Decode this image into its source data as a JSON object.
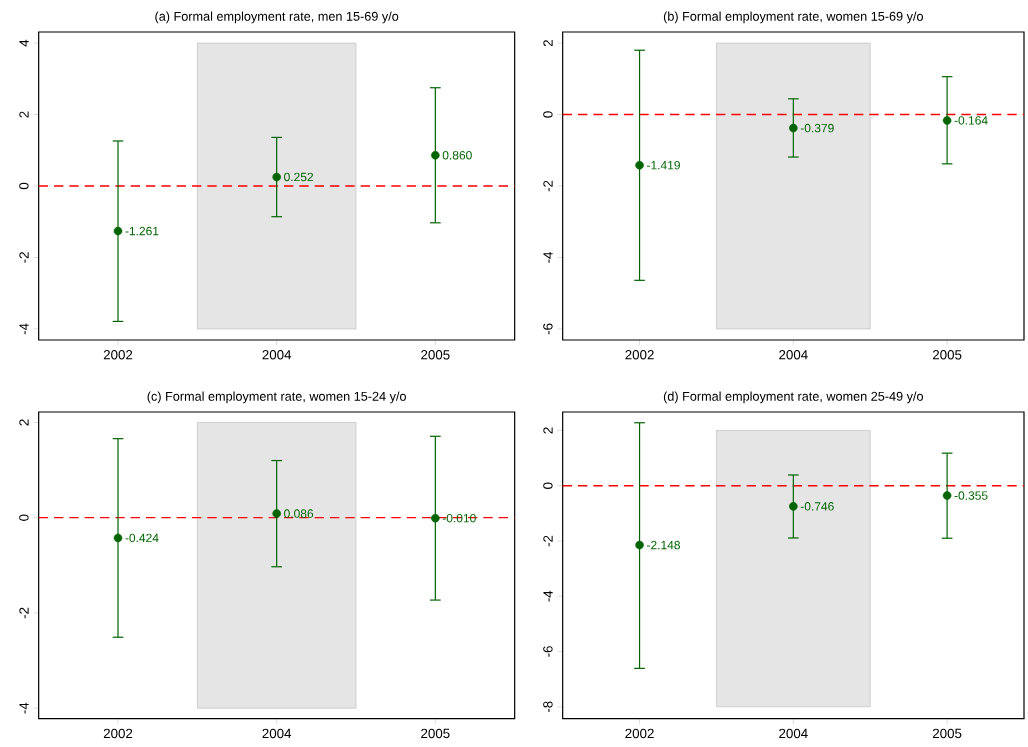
{
  "chart_data": [
    {
      "type": "scatter",
      "title": "(a) Formal employment rate, men 15-69 y/o",
      "categories": [
        "2002",
        "2004",
        "2005"
      ],
      "marker": "circle",
      "ylim": [
        -4.31,
        4.31
      ],
      "yticks": [
        -4,
        -2,
        0,
        2,
        4
      ],
      "series": [
        {
          "color": "#006400",
          "values": [
            -1.261,
            0.252,
            0.86
          ],
          "value_labels": [
            "-1.261",
            "0.252",
            "0.860"
          ],
          "errors": [
            [
              -3.79,
              1.26
            ],
            [
              -0.86,
              1.36
            ],
            [
              -1.03,
              2.75
            ]
          ]
        }
      ],
      "ref_lines": [
        {
          "axis": "y",
          "value": 0,
          "color": "#ff0000",
          "line_style": "dashed"
        }
      ],
      "bands": [
        {
          "axis": "x",
          "from": "2004",
          "to": "2004",
          "color": "#e5e5e5"
        }
      ]
    },
    {
      "type": "scatter",
      "title": "(b) Formal employment rate, women 15-69 y/o",
      "categories": [
        "2002",
        "2004",
        "2005"
      ],
      "marker": "circle",
      "ylim": [
        -6.31,
        2.31
      ],
      "yticks": [
        -6,
        -4,
        -2,
        0,
        2
      ],
      "series": [
        {
          "color": "#006400",
          "values": [
            -1.419,
            -0.379,
            -0.164
          ],
          "value_labels": [
            "-1.419",
            "-0.379",
            "-0.164"
          ],
          "errors": [
            [
              -4.64,
              1.8
            ],
            [
              -1.19,
              0.44
            ],
            [
              -1.38,
              1.06
            ]
          ]
        }
      ],
      "ref_lines": [
        {
          "axis": "y",
          "value": 0,
          "color": "#ff0000",
          "line_style": "dashed"
        }
      ],
      "bands": [
        {
          "axis": "x",
          "from": "2004",
          "to": "2004",
          "color": "#e5e5e5"
        }
      ]
    },
    {
      "type": "scatter",
      "title": "(c) Formal employment rate, women 15-24 y/o",
      "categories": [
        "2002",
        "2004",
        "2005"
      ],
      "marker": "circle",
      "ylim": [
        -4.22,
        2.22
      ],
      "yticks": [
        -4,
        -2,
        0,
        2
      ],
      "series": [
        {
          "color": "#006400",
          "values": [
            -0.424,
            0.086,
            -0.01
          ],
          "value_labels": [
            "-0.424",
            "0.086",
            "-0.010"
          ],
          "errors": [
            [
              -2.51,
              1.66
            ],
            [
              -1.03,
              1.2
            ],
            [
              -1.73,
              1.71
            ]
          ]
        }
      ],
      "ref_lines": [
        {
          "axis": "y",
          "value": 0,
          "color": "#ff0000",
          "line_style": "dashed"
        }
      ],
      "bands": [
        {
          "axis": "x",
          "from": "2004",
          "to": "2004",
          "color": "#e5e5e5"
        }
      ]
    },
    {
      "type": "scatter",
      "title": "(d) Formal employment rate, women 25-49 y/o",
      "categories": [
        "2002",
        "2004",
        "2005"
      ],
      "marker": "circle",
      "ylim": [
        -8.43,
        2.67
      ],
      "yticks": [
        -8,
        -6,
        -4,
        -2,
        0,
        2
      ],
      "series": [
        {
          "color": "#006400",
          "values": [
            -2.148,
            -0.746,
            -0.355
          ],
          "value_labels": [
            "-2.148",
            "-0.746",
            "-0.355"
          ],
          "errors": [
            [
              -6.61,
              2.28
            ],
            [
              -1.89,
              0.39
            ],
            [
              -1.9,
              1.18
            ]
          ]
        }
      ],
      "ref_lines": [
        {
          "axis": "y",
          "value": 0,
          "color": "#ff0000",
          "line_style": "dashed"
        }
      ],
      "bands": [
        {
          "axis": "x",
          "from": "2004",
          "to": "2004",
          "color": "#e5e5e5"
        }
      ]
    }
  ]
}
